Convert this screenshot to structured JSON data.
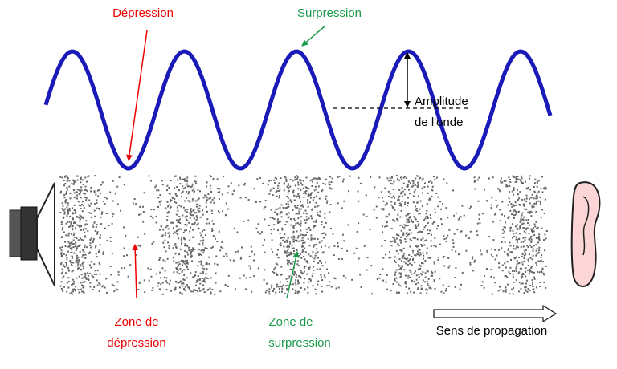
{
  "wave_labels": {
    "depression": "Dépression",
    "surpression": "Surpression",
    "amplitude": [
      "Amplitude",
      "de l'onde"
    ]
  },
  "zone_labels": {
    "depression": [
      "Zone de",
      "dépression"
    ],
    "surpression": [
      "Zone de",
      "surpression"
    ]
  },
  "propagation_label": "Sens de propagation"
}
